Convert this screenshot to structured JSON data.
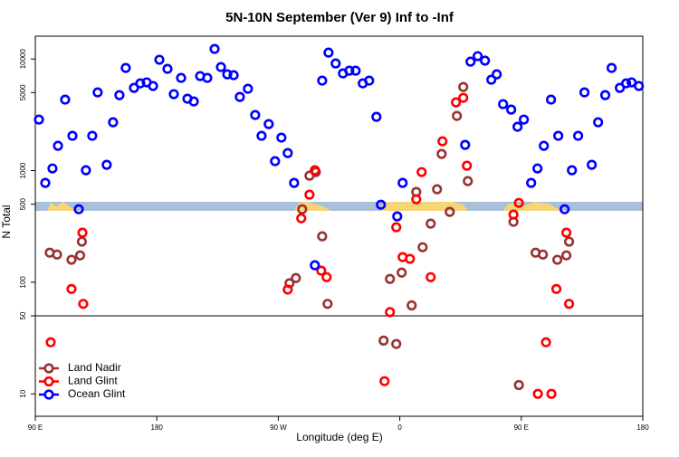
{
  "chart_data": {
    "type": "scatter",
    "title": "5N-10N September (Ver 9)   Inf to -Inf",
    "x_label": "Longitude (deg E)",
    "y_label": "N Total",
    "xlim": [
      90,
      540
    ],
    "ylim": [
      6.3,
      16000
    ],
    "y_scale": "log",
    "xticks": [
      {
        "value": 90,
        "label": "90 E"
      },
      180,
      {
        "value": 270,
        "label": "90 W"
      },
      {
        "value": 360,
        "label": "0"
      },
      {
        "value": 450,
        "label": "90 E"
      },
      {
        "value": 540,
        "label": "180"
      }
    ],
    "yticks": [
      10,
      50,
      100,
      500,
      1000,
      5000,
      10000
    ],
    "legend": "bottom-left",
    "series": [
      {
        "name": "Land Nadir",
        "color": "#993333",
        "x": [
          100.7,
          106.1,
          116.8,
          123.2,
          124.5,
          278.3,
          283.0,
          287.7,
          293.1,
          297.8,
          302.5,
          306.5,
          348.0,
          352.7,
          357.4,
          361.4,
          368.8,
          372.2,
          376.9,
          382.9,
          387.6,
          391.0,
          397.0,
          402.3,
          407.0,
          410.4,
          444.2,
          448.2,
          460.6,
          466.0,
          476.7,
          483.4,
          485.4
        ],
        "values": [
          184,
          177,
          159,
          174,
          231,
          98,
          109,
          451,
          901,
          970,
          258,
          64,
          30,
          107,
          28,
          122,
          62,
          644,
          206,
          335,
          681,
          1410,
          427,
          3090,
          5610,
          805,
          348,
          12,
          184,
          177,
          159,
          174,
          231
        ]
      },
      {
        "name": "Land Glint",
        "color": "#ff0000",
        "x": [
          101.4,
          116.8,
          124.9,
          125.5,
          277.0,
          287.0,
          293.1,
          297.1,
          301.8,
          305.8,
          348.7,
          352.7,
          357.4,
          362.1,
          367.5,
          372.2,
          376.2,
          382.9,
          391.6,
          401.6,
          407.0,
          409.7,
          444.2,
          448.2,
          462.3,
          468.3,
          472.3,
          476.0,
          483.4,
          485.4
        ],
        "values": [
          29,
          87,
          278,
          64,
          86,
          374,
          609,
          1008,
          127,
          111,
          13,
          54,
          311,
          168,
          162,
          554,
          970,
          111,
          1830,
          4085,
          4490,
          1106,
          404,
          514,
          10,
          29,
          10,
          87,
          278,
          64
        ]
      },
      {
        "name": "Ocean Glint",
        "color": "#0000ff",
        "x": [
          92.7,
          97.4,
          102.7,
          106.8,
          112.1,
          117.5,
          122.2,
          127.5,
          132.2,
          136.2,
          142.9,
          147.6,
          152.3,
          157.0,
          163.1,
          167.8,
          172.5,
          177.2,
          181.9,
          187.9,
          192.6,
          198.0,
          202.7,
          207.4,
          212.1,
          217.4,
          222.8,
          227.5,
          232.2,
          236.9,
          241.5,
          247.5,
          252.9,
          257.6,
          262.9,
          267.6,
          272.3,
          277.0,
          281.7,
          297.1,
          302.5,
          307.2,
          312.5,
          317.9,
          322.6,
          327.3,
          332.6,
          337.3,
          342.7,
          346.0,
          358.1,
          362.1,
          408.4,
          412.4,
          417.7,
          423.1,
          427.8,
          431.8,
          436.5,
          442.5,
          447.2,
          451.9,
          457.3,
          462.0,
          466.7,
          472.0,
          477.4,
          482.1,
          487.5,
          492.1,
          496.8,
          502.2,
          506.9,
          512.2,
          516.9,
          523.0,
          527.7,
          531.7,
          537.1
        ],
        "values": [
          2865,
          776,
          1045,
          1667,
          4325,
          2050,
          451,
          1008,
          2050,
          5020,
          1127,
          2710,
          4745,
          8310,
          5510,
          6050,
          6170,
          5725,
          9840,
          8160,
          4840,
          6770,
          4405,
          4165,
          7030,
          6770,
          12300,
          8470,
          7290,
          7160,
          4570,
          5410,
          3150,
          2050,
          2610,
          1215,
          1975,
          1437,
          776,
          142,
          6400,
          11400,
          9120,
          7430,
          7850,
          7850,
          6050,
          6400,
          3030,
          495,
          389,
          776,
          1700,
          9460,
          10600,
          9660,
          6520,
          7290,
          3940,
          3520,
          2470,
          2865,
          776,
          1045,
          1667,
          4325,
          2050,
          451,
          1008,
          2050,
          5020,
          1127,
          2710,
          4745,
          8310,
          5510,
          6050,
          6170,
          5725
        ]
      }
    ]
  }
}
